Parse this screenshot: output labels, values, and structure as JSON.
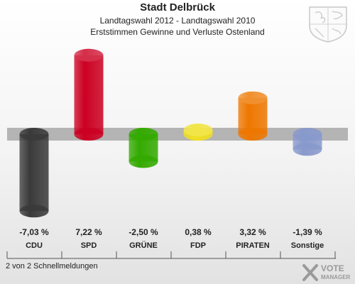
{
  "chart_data": {
    "type": "bar",
    "title": "Stadt Delbrück",
    "subtitle": "Landtagswahl 2012 - Landtagswahl 2010",
    "subtitle2": "Erststimmen Gewinne und Verluste Ostenland",
    "categories": [
      "CDU",
      "SPD",
      "GRÜNE",
      "FDP",
      "PIRATEN",
      "Sonstige"
    ],
    "values": [
      -7.03,
      7.22,
      -2.5,
      0.38,
      3.32,
      -1.39
    ],
    "value_labels": [
      "-7,03 %",
      "7,22 %",
      "-2,50 %",
      "0,38 %",
      "3,32 %",
      "-1,39 %"
    ],
    "colors": [
      "#3a3a3a",
      "#cc0022",
      "#33aa00",
      "#f0e020",
      "#ee7700",
      "#8899cc"
    ],
    "zero_band_color": "#b4b4b4"
  },
  "footer": {
    "text": "2 von 2 Schnellmeldungen"
  },
  "logo": {
    "line1": "VOTE",
    "line2": "MANAGER"
  },
  "icons": {
    "crest": "coat-of-arms-icon",
    "logo": "votemanager-logo-icon"
  }
}
